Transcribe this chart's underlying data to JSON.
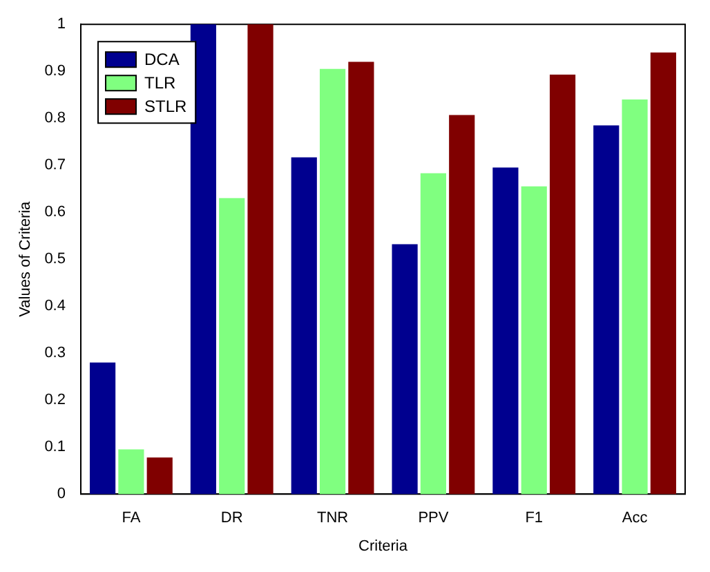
{
  "chart_data": {
    "type": "bar",
    "xlabel": "Criteria",
    "ylabel": "Values of Criteria",
    "categories": [
      "FA",
      "DR",
      "TNR",
      "PPV",
      "F1",
      "Acc"
    ],
    "series": [
      {
        "name": "DCA",
        "color": "#00008f",
        "values": [
          0.28,
          1.0,
          0.717,
          0.532,
          0.695,
          0.785
        ]
      },
      {
        "name": "TLR",
        "color": "#80ff80",
        "values": [
          0.095,
          0.63,
          0.905,
          0.683,
          0.655,
          0.84
        ]
      },
      {
        "name": "STLR",
        "color": "#800000",
        "values": [
          0.078,
          1.0,
          0.92,
          0.807,
          0.893,
          0.94
        ]
      }
    ],
    "ylim": [
      0,
      1
    ],
    "yticks": [
      0,
      0.1,
      0.2,
      0.3,
      0.4,
      0.5,
      0.6,
      0.7,
      0.8,
      0.9,
      1
    ],
    "grid": false,
    "legend": "top left"
  }
}
